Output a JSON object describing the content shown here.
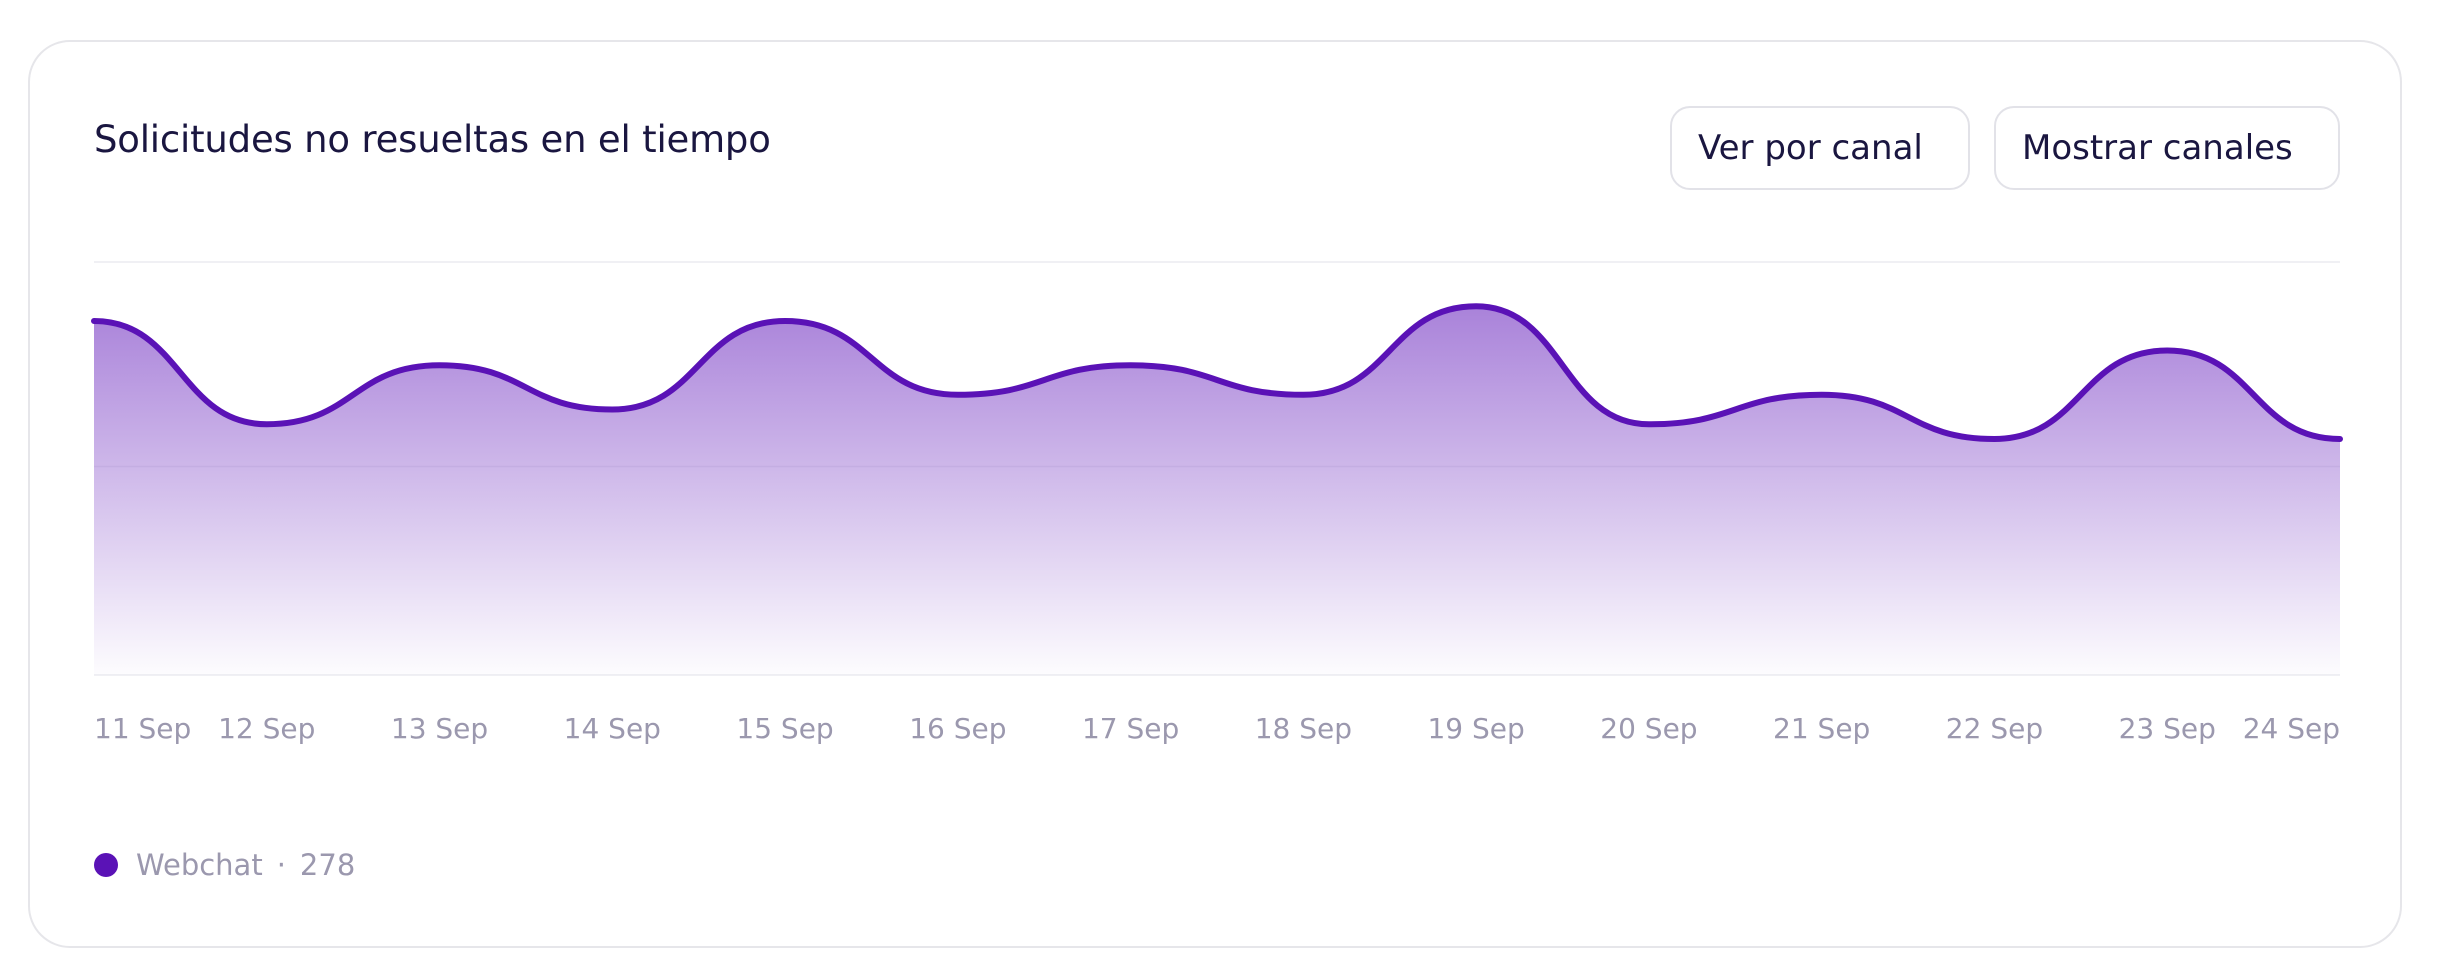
{
  "title": "Solicitudes no resueltas en el tiempo",
  "controls": {
    "view_by_label": "Ver por canal",
    "show_channels_label": "Mostrar canales"
  },
  "colors": {
    "series": "#5a12b6",
    "fill_top": "#9a6cd3",
    "grid": "#ececf0",
    "tick_text": "#9b98ae",
    "title_text": "#1a1640"
  },
  "icons": {
    "dropdown": "chevron-down-icon"
  },
  "legend": {
    "items": [
      {
        "name": "Webchat",
        "value": "278"
      }
    ]
  },
  "chart_data": {
    "type": "area",
    "title": "Solicitudes no resueltas en el tiempo",
    "xlabel": "",
    "ylabel": "",
    "x": [
      "11 Sep",
      "12 Sep",
      "13 Sep",
      "14 Sep",
      "15 Sep",
      "16 Sep",
      "17 Sep",
      "18 Sep",
      "19 Sep",
      "20 Sep",
      "21 Sep",
      "22 Sep",
      "23 Sep",
      "24 Sep"
    ],
    "ylim": [
      0,
      28
    ],
    "grid": true,
    "smooth": true,
    "legend_position": "bottom-left",
    "series": [
      {
        "name": "Webchat",
        "values": [
          24,
          17,
          21,
          18,
          24,
          19,
          21,
          19,
          25,
          17,
          19,
          16,
          22,
          16
        ]
      }
    ]
  }
}
